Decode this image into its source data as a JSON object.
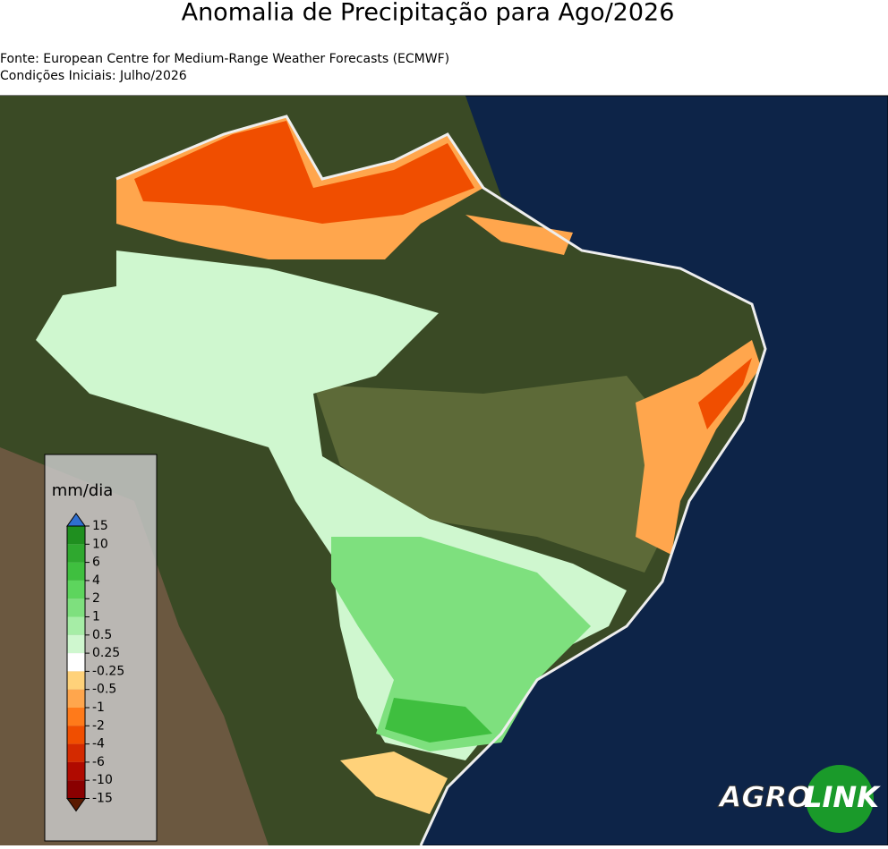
{
  "header": {
    "title": "Anomalia de Precipitação para Ago/2026",
    "source": "Fonte: European Centre for Medium-Range Weather Forecasts (ECMWF)",
    "initial_conditions": "Condições Iniciais: Julho/2026"
  },
  "legend": {
    "label": "mm/dia",
    "levels": [
      15,
      10,
      6,
      4,
      2,
      1,
      0.5,
      0.25,
      -0.25,
      -0.5,
      -1,
      -2,
      -4,
      -6,
      -10,
      -15
    ],
    "colors": [
      "#1f8f1f",
      "#2fa82f",
      "#3fbf3f",
      "#5dd55d",
      "#7ee07e",
      "#a6eda6",
      "#cff7cf",
      "#ffffff",
      "#ffd27a",
      "#ffa64d",
      "#ff7a1a",
      "#f04e00",
      "#d42a00",
      "#b00a00",
      "#8a0000"
    ],
    "over_color": "#2f6fd0",
    "under_color": "#5a1a00"
  },
  "logo": {
    "first": "AGRO",
    "second": "LINK"
  }
}
